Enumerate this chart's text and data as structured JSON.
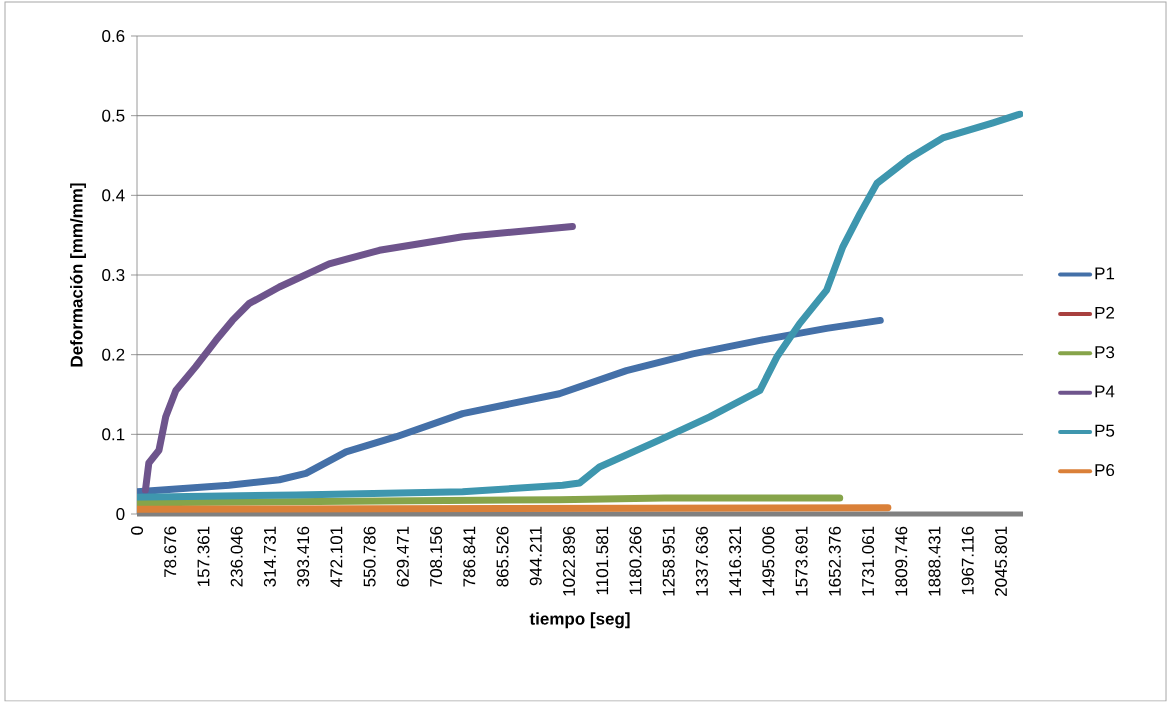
{
  "chart_data": {
    "type": "line",
    "xlabel": "tiempo [seg]",
    "ylabel": "Deformación [mm/mm]",
    "xlim": [
      0,
      2098
    ],
    "ylim": [
      0,
      0.6
    ],
    "xticks": [
      0,
      78.676,
      157.361,
      236.046,
      314.731,
      393.416,
      472.101,
      550.786,
      629.471,
      708.156,
      786.841,
      865.526,
      944.211,
      1022.896,
      1101.581,
      1180.266,
      1258.951,
      1337.636,
      1416.321,
      1495.006,
      1573.691,
      1652.376,
      1731.061,
      1809.746,
      1888.431,
      1967.116,
      2045.801
    ],
    "yticks": [
      0,
      0.1,
      0.2,
      0.3,
      0.4,
      0.5,
      0.6
    ],
    "grid": "y",
    "legend": "right",
    "marker": "none",
    "line_style": "solid",
    "series": [
      {
        "name": "P1",
        "color": "#4470a8",
        "x": [
          0,
          218,
          337,
          400,
          495,
          614,
          771,
          1000,
          1159,
          1316,
          1475,
          1633,
          1760
        ],
        "values": [
          0.028,
          0.036,
          0.043,
          0.051,
          0.078,
          0.097,
          0.126,
          0.151,
          0.18,
          0.201,
          0.218,
          0.233,
          0.243
        ]
      },
      {
        "name": "P2",
        "color": "#a8403e"
      },
      {
        "name": "P3",
        "color": "#86a44a",
        "x": [
          0,
          1000,
          1250,
          1664
        ],
        "values": [
          0.014,
          0.018,
          0.02,
          0.02
        ]
      },
      {
        "name": "P4",
        "color": "#6e548c",
        "x": [
          20,
          28,
          52,
          68,
          92,
          139,
          187,
          226,
          265,
          337,
          455,
          574,
          771,
          1031
        ],
        "values": [
          0.03,
          0.064,
          0.08,
          0.122,
          0.155,
          0.185,
          0.218,
          0.243,
          0.264,
          0.285,
          0.314,
          0.331,
          0.348,
          0.361
        ]
      },
      {
        "name": "P5",
        "color": "#3e96ae",
        "x": [
          0,
          377,
          771,
          1008,
          1048,
          1095,
          1238,
          1356,
          1475,
          1515,
          1569,
          1633,
          1671,
          1712,
          1752,
          1830,
          1908,
          2027,
          2091
        ],
        "values": [
          0.021,
          0.024,
          0.028,
          0.036,
          0.039,
          0.059,
          0.093,
          0.122,
          0.155,
          0.197,
          0.239,
          0.281,
          0.335,
          0.377,
          0.415,
          0.447,
          0.472,
          0.491,
          0.502
        ]
      },
      {
        "name": "P6",
        "color": "#da8038",
        "x": [
          0,
          1778
        ],
        "values": [
          0.006,
          0.008
        ]
      }
    ]
  }
}
